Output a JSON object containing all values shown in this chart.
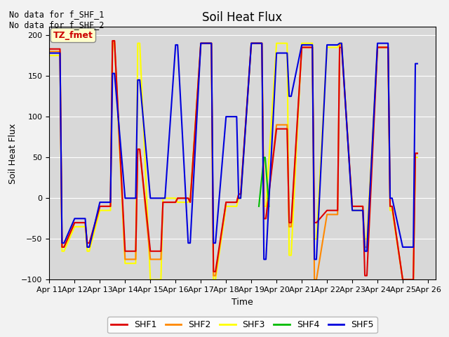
{
  "title": "Soil Heat Flux",
  "xlabel": "Time",
  "ylabel": "Soil Heat Flux",
  "ylim": [
    -100,
    210
  ],
  "yticks": [
    -100,
    -50,
    0,
    50,
    100,
    150,
    200
  ],
  "annotation_text": "No data for f_SHF_1\nNo data for f_SHF_2",
  "legend_box_text": "TZ_fmet",
  "legend_box_color": "#ffffcc",
  "legend_box_text_color": "#cc0000",
  "plot_bg": "#d8d8d8",
  "fig_bg": "#f2f2f2",
  "series": {
    "SHF1": {
      "color": "#dd0000",
      "x": [
        11.0,
        11.42,
        11.5,
        11.58,
        12.0,
        12.42,
        12.5,
        12.58,
        13.0,
        13.42,
        13.5,
        13.58,
        14.0,
        14.42,
        14.5,
        14.58,
        15.0,
        15.42,
        15.5,
        15.58,
        16.0,
        16.08,
        16.5,
        16.58,
        17.0,
        17.42,
        17.5,
        17.58,
        18.0,
        18.42,
        18.5,
        18.58,
        19.0,
        19.42,
        19.5,
        19.58,
        20.0,
        20.42,
        20.5,
        20.58,
        21.0,
        21.42,
        21.5,
        21.58,
        22.0,
        22.42,
        22.5,
        22.58,
        23.0,
        23.42,
        23.5,
        23.58,
        24.0,
        24.42,
        24.5,
        24.58,
        25.0,
        25.42,
        25.5,
        25.58
      ],
      "y": [
        183,
        183,
        -60,
        -60,
        -30,
        -30,
        -55,
        -55,
        -10,
        -10,
        193,
        193,
        -65,
        -65,
        60,
        60,
        -65,
        -65,
        -5,
        -5,
        -5,
        0,
        0,
        -5,
        190,
        190,
        -90,
        -90,
        -5,
        -5,
        5,
        5,
        190,
        190,
        -25,
        -25,
        85,
        85,
        -30,
        -30,
        185,
        185,
        -30,
        -30,
        -15,
        -15,
        185,
        185,
        -10,
        -10,
        -95,
        -95,
        185,
        185,
        -10,
        -10,
        -100,
        -100,
        55,
        55
      ]
    },
    "SHF2": {
      "color": "#ff8800",
      "x": [
        11.0,
        11.42,
        11.5,
        11.58,
        12.0,
        12.42,
        12.5,
        12.58,
        13.0,
        13.42,
        13.5,
        13.58,
        14.0,
        14.42,
        14.5,
        14.58,
        15.0,
        15.42,
        15.5,
        15.58,
        16.0,
        16.08,
        16.5,
        16.58,
        17.0,
        17.42,
        17.5,
        17.58,
        18.0,
        18.42,
        18.5,
        18.58,
        19.0,
        19.42,
        19.5,
        19.58,
        20.0,
        20.42,
        20.5,
        20.58,
        21.0,
        21.42,
        21.5,
        21.58,
        22.0,
        22.42,
        22.5,
        22.58,
        23.0,
        23.42,
        23.5,
        23.58,
        24.0,
        24.42,
        24.5,
        24.58,
        25.0,
        25.42,
        25.5,
        25.58
      ],
      "y": [
        180,
        180,
        -60,
        -60,
        -30,
        -30,
        -60,
        -60,
        -10,
        -10,
        193,
        193,
        -75,
        -75,
        60,
        60,
        -75,
        -75,
        -5,
        -5,
        -5,
        0,
        0,
        -5,
        190,
        190,
        -95,
        -95,
        -5,
        -5,
        5,
        5,
        190,
        190,
        -25,
        -25,
        90,
        90,
        -35,
        -35,
        185,
        185,
        -100,
        -100,
        -20,
        -20,
        188,
        188,
        -10,
        -10,
        -60,
        -60,
        185,
        185,
        -10,
        -10,
        -100,
        -100,
        55,
        55
      ]
    },
    "SHF3": {
      "color": "#ffff00",
      "x": [
        11.0,
        11.42,
        11.5,
        11.58,
        12.0,
        12.42,
        12.5,
        12.58,
        13.0,
        13.42,
        13.5,
        13.58,
        14.0,
        14.42,
        14.5,
        14.58,
        15.0,
        15.42,
        15.5,
        15.58,
        16.0,
        16.08,
        16.5,
        16.58,
        17.0,
        17.42,
        17.5,
        17.58,
        18.0,
        18.42,
        18.5,
        18.58,
        19.0,
        19.42,
        19.5,
        19.58,
        20.0,
        20.42,
        20.5,
        20.58,
        21.0,
        21.42,
        21.5,
        21.58,
        22.0,
        22.42,
        22.5,
        22.58,
        23.0,
        23.42,
        23.5,
        23.58,
        24.0,
        24.42,
        24.5,
        24.58,
        25.0,
        25.42,
        25.5,
        25.58
      ],
      "y": [
        175,
        175,
        -65,
        -65,
        -35,
        -35,
        -65,
        -65,
        -15,
        -15,
        190,
        190,
        -80,
        -80,
        190,
        190,
        -100,
        -100,
        0,
        0,
        0,
        -5,
        -5,
        0,
        190,
        190,
        -100,
        -100,
        -10,
        -10,
        0,
        0,
        190,
        190,
        -10,
        -10,
        190,
        190,
        -70,
        -70,
        190,
        190,
        -50,
        -50,
        185,
        185,
        190,
        190,
        -15,
        -15,
        -50,
        -50,
        185,
        185,
        -15,
        -15,
        -100,
        -100,
        50,
        50
      ]
    },
    "SHF4": {
      "color": "#00bb00",
      "x": [
        19.3,
        19.5,
        19.55,
        19.7
      ],
      "y": [
        -10,
        50,
        50,
        -10
      ]
    },
    "SHF5": {
      "color": "#0000dd",
      "x": [
        11.0,
        11.42,
        11.5,
        11.58,
        12.0,
        12.42,
        12.5,
        12.58,
        13.0,
        13.42,
        13.5,
        13.58,
        14.0,
        14.42,
        14.5,
        14.58,
        15.0,
        15.42,
        15.5,
        15.58,
        16.0,
        16.08,
        16.5,
        16.58,
        17.0,
        17.42,
        17.5,
        17.58,
        18.0,
        18.42,
        18.5,
        18.58,
        19.0,
        19.42,
        19.5,
        19.58,
        20.0,
        20.42,
        20.5,
        20.58,
        21.0,
        21.42,
        21.5,
        21.58,
        22.0,
        22.42,
        22.5,
        22.58,
        23.0,
        23.42,
        23.5,
        23.58,
        24.0,
        24.42,
        24.5,
        24.58,
        25.0,
        25.42,
        25.5,
        25.58
      ],
      "y": [
        178,
        178,
        -55,
        -55,
        -25,
        -25,
        -60,
        -60,
        -5,
        -5,
        153,
        153,
        0,
        0,
        145,
        145,
        0,
        0,
        0,
        0,
        188,
        188,
        -55,
        -55,
        190,
        190,
        -55,
        -55,
        100,
        100,
        0,
        0,
        190,
        190,
        -75,
        -75,
        178,
        178,
        125,
        125,
        188,
        188,
        -75,
        -75,
        188,
        188,
        190,
        190,
        -15,
        -15,
        -65,
        -65,
        190,
        190,
        0,
        0,
        -60,
        -60,
        165,
        165
      ]
    }
  },
  "xticks": [
    11,
    12,
    13,
    14,
    15,
    16,
    17,
    18,
    19,
    20,
    21,
    22,
    23,
    24,
    25,
    26
  ],
  "xtick_labels": [
    "Apr 11",
    "Apr 12",
    "Apr 13",
    "Apr 14",
    "Apr 15",
    "Apr 16",
    "Apr 17",
    "Apr 18",
    "Apr 19",
    "Apr 20",
    "Apr 21",
    "Apr 22",
    "Apr 23",
    "Apr 24",
    "Apr 25",
    "Apr 26"
  ],
  "legend_entries": [
    {
      "label": "SHF1",
      "color": "#dd0000"
    },
    {
      "label": "SHF2",
      "color": "#ff8800"
    },
    {
      "label": "SHF3",
      "color": "#ffff00"
    },
    {
      "label": "SHF4",
      "color": "#00bb00"
    },
    {
      "label": "SHF5",
      "color": "#0000dd"
    }
  ]
}
